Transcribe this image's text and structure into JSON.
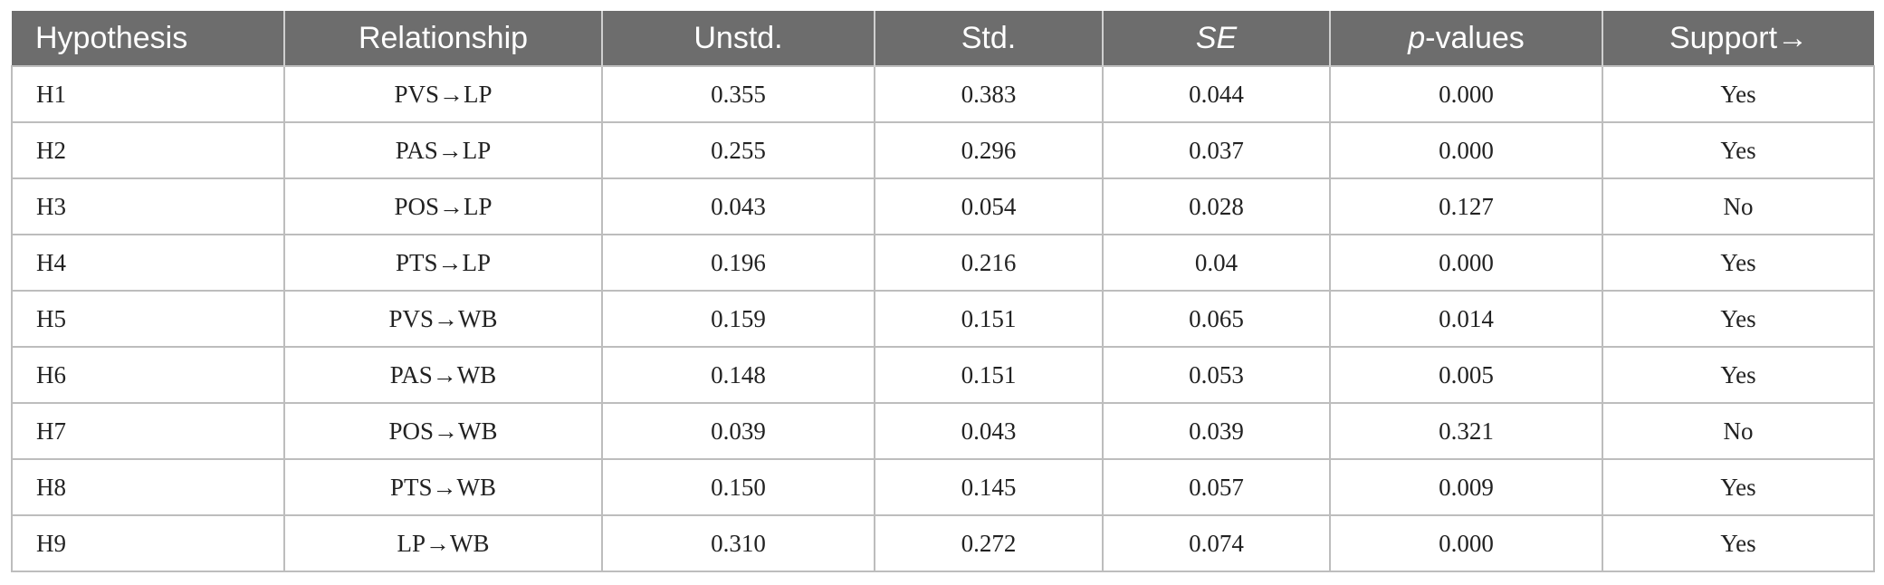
{
  "header": {
    "hypothesis": "Hypothesis",
    "relationship": "Relationship",
    "unstd": "Unstd.",
    "std": "Std.",
    "se": "SE",
    "p_values_italic": "p",
    "p_values_rest": "-values",
    "support": "Support→"
  },
  "rows": [
    {
      "hypothesis": "H1",
      "relationship": "PVS→LP",
      "unstd": "0.355",
      "std": "0.383",
      "se": "0.044",
      "p": "0.000",
      "support": "Yes"
    },
    {
      "hypothesis": "H2",
      "relationship": "PAS→LP",
      "unstd": "0.255",
      "std": "0.296",
      "se": "0.037",
      "p": "0.000",
      "support": "Yes"
    },
    {
      "hypothesis": "H3",
      "relationship": "POS→LP",
      "unstd": "0.043",
      "std": "0.054",
      "se": "0.028",
      "p": "0.127",
      "support": "No"
    },
    {
      "hypothesis": "H4",
      "relationship": "PTS→LP",
      "unstd": "0.196",
      "std": "0.216",
      "se": "0.04",
      "p": "0.000",
      "support": "Yes"
    },
    {
      "hypothesis": "H5",
      "relationship": "PVS→WB",
      "unstd": "0.159",
      "std": "0.151",
      "se": "0.065",
      "p": "0.014",
      "support": "Yes"
    },
    {
      "hypothesis": "H6",
      "relationship": "PAS→WB",
      "unstd": "0.148",
      "std": "0.151",
      "se": "0.053",
      "p": "0.005",
      "support": "Yes"
    },
    {
      "hypothesis": "H7",
      "relationship": "POS→WB",
      "unstd": "0.039",
      "std": "0.043",
      "se": "0.039",
      "p": "0.321",
      "support": "No"
    },
    {
      "hypothesis": "H8",
      "relationship": "PTS→WB",
      "unstd": "0.150",
      "std": "0.145",
      "se": "0.057",
      "p": "0.009",
      "support": "Yes"
    },
    {
      "hypothesis": "H9",
      "relationship": "LP→WB",
      "unstd": "0.310",
      "std": "0.272",
      "se": "0.074",
      "p": "0.000",
      "support": "Yes"
    }
  ],
  "colors": {
    "header_bg": "#6d6d6d",
    "header_text": "#ffffff",
    "grid": "#bdbdbd"
  }
}
